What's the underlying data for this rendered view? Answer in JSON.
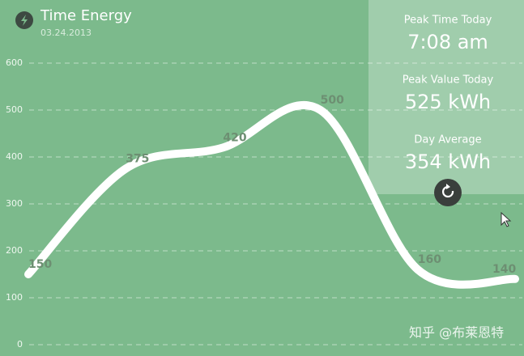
{
  "chart_data": {
    "type": "line",
    "title": "Time Energy",
    "subtitle": "03.24.2013",
    "values": [
      150,
      375,
      420,
      500,
      160,
      140
    ],
    "ylim": [
      0,
      600
    ],
    "yticks": [
      0,
      100,
      200,
      300,
      400,
      500,
      600
    ],
    "grid": true,
    "color": "#ffffff",
    "panel": [
      {
        "label": "Peak Time Today",
        "value": "7:08 am"
      },
      {
        "label": "Peak Value Today",
        "value": "525 kWh"
      },
      {
        "label": "Day Average",
        "value": "354 kWh"
      }
    ],
    "watermark": "知乎 @布莱恩特"
  }
}
